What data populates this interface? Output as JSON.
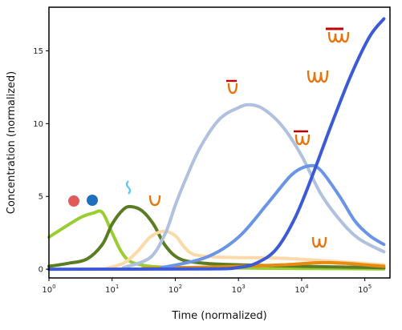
{
  "chart_data": {
    "type": "line",
    "xlabel": "Time (normalized)",
    "ylabel": "Concentration (normalized)",
    "xscale": "log",
    "xlim": [
      1,
      250000
    ],
    "ylim": [
      -0.6,
      18
    ],
    "x_ticks": [
      {
        "value": 1,
        "label": "10",
        "exp": "0"
      },
      {
        "value": 10,
        "label": "10",
        "exp": "1"
      },
      {
        "value": 100,
        "label": "10",
        "exp": "2"
      },
      {
        "value": 1000,
        "label": "10",
        "exp": "3"
      },
      {
        "value": 10000,
        "label": "10",
        "exp": "4"
      },
      {
        "value": 100000,
        "label": "10",
        "exp": "5"
      }
    ],
    "y_ticks": [
      0,
      5,
      10,
      15
    ],
    "grid": false,
    "series": [
      {
        "color": "#9acd32",
        "points": [
          [
            1,
            2.2
          ],
          [
            3,
            3.5
          ],
          [
            5,
            3.85
          ],
          [
            7,
            3.9
          ],
          [
            10,
            2.5
          ],
          [
            14,
            1.2
          ],
          [
            20,
            0.5
          ],
          [
            40,
            0.2
          ],
          [
            100,
            0.12
          ],
          [
            1000,
            0.08
          ],
          [
            10000,
            0.05
          ],
          [
            200000,
            0.02
          ]
        ]
      },
      {
        "color": "#5a7d24",
        "points": [
          [
            1,
            0.2
          ],
          [
            2,
            0.4
          ],
          [
            4,
            0.7
          ],
          [
            7,
            1.7
          ],
          [
            10,
            3.1
          ],
          [
            15,
            4.1
          ],
          [
            20,
            4.3
          ],
          [
            30,
            4.0
          ],
          [
            45,
            3.1
          ],
          [
            70,
            1.6
          ],
          [
            120,
            0.7
          ],
          [
            300,
            0.4
          ],
          [
            1000,
            0.3
          ],
          [
            10000,
            0.2
          ],
          [
            200000,
            0.1
          ]
        ]
      },
      {
        "color": "#fbd9a9",
        "points": [
          [
            8,
            0.05
          ],
          [
            15,
            0.4
          ],
          [
            25,
            1.2
          ],
          [
            40,
            2.2
          ],
          [
            65,
            2.6
          ],
          [
            100,
            2.3
          ],
          [
            140,
            1.5
          ],
          [
            200,
            1.0
          ],
          [
            400,
            0.85
          ],
          [
            1000,
            0.8
          ],
          [
            5000,
            0.75
          ],
          [
            30000,
            0.55
          ],
          [
            200000,
            0.3
          ]
        ]
      },
      {
        "color": "#e88a10",
        "points": [
          [
            30,
            0.05
          ],
          [
            200,
            0.12
          ],
          [
            1000,
            0.2
          ],
          [
            5000,
            0.3
          ],
          [
            20000,
            0.45
          ],
          [
            50000,
            0.4
          ],
          [
            100000,
            0.3
          ],
          [
            200000,
            0.2
          ]
        ]
      },
      {
        "color": "#afc1de",
        "points": [
          [
            15,
            0.1
          ],
          [
            40,
            0.8
          ],
          [
            70,
            2.5
          ],
          [
            100,
            4.4
          ],
          [
            150,
            6.3
          ],
          [
            250,
            8.4
          ],
          [
            500,
            10.3
          ],
          [
            1000,
            11.1
          ],
          [
            1500,
            11.3
          ],
          [
            2500,
            11.0
          ],
          [
            5000,
            9.8
          ],
          [
            10000,
            7.8
          ],
          [
            20000,
            5.2
          ],
          [
            40000,
            3.4
          ],
          [
            80000,
            2.1
          ],
          [
            200000,
            1.2
          ]
        ]
      },
      {
        "color": "#6a94e6",
        "points": [
          [
            60,
            0.1
          ],
          [
            300,
            0.8
          ],
          [
            1000,
            2.2
          ],
          [
            3000,
            4.6
          ],
          [
            7000,
            6.5
          ],
          [
            13000,
            7.1
          ],
          [
            20000,
            6.8
          ],
          [
            40000,
            5.0
          ],
          [
            70000,
            3.3
          ],
          [
            120000,
            2.3
          ],
          [
            200000,
            1.7
          ]
        ]
      },
      {
        "color": "#3d5ad6",
        "points": [
          [
            1,
            0
          ],
          [
            300,
            0.02
          ],
          [
            1000,
            0.12
          ],
          [
            2000,
            0.45
          ],
          [
            4000,
            1.4
          ],
          [
            8000,
            3.6
          ],
          [
            15000,
            6.5
          ],
          [
            30000,
            10.0
          ],
          [
            60000,
            13.3
          ],
          [
            120000,
            16.0
          ],
          [
            200000,
            17.2
          ]
        ]
      }
    ]
  }
}
